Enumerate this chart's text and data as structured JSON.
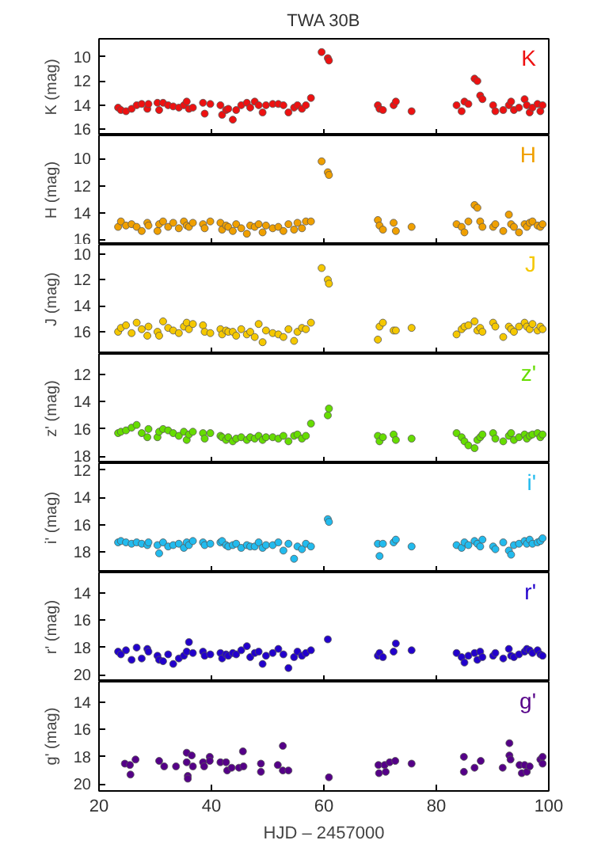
{
  "chart_data": [
    {
      "type": "scatter",
      "title": "TWA 30B",
      "ylabel": "K (mag)",
      "xlim": [
        20,
        100
      ],
      "xticks": [
        20,
        40,
        60,
        80,
        100
      ],
      "ylim": [
        16.5,
        8.5
      ],
      "yticks": [
        10,
        12,
        14,
        16
      ],
      "tick_labels": "y",
      "marker": "circle",
      "x": [
        23.4,
        23.9,
        24.8,
        25.8,
        26.7,
        27.6,
        28.6,
        28.8,
        30.4,
        30.7,
        31.4,
        32.3,
        33.2,
        34.2,
        35.1,
        35.6,
        36.0,
        36.7,
        38.5,
        38.8,
        39.8,
        41.6,
        41.9,
        42.6,
        43.0,
        43.8,
        44.4,
        45.3,
        46.3,
        46.9,
        47.7,
        48.4,
        49.1,
        49.7,
        50.9,
        51.9,
        52.8,
        53.7,
        54.7,
        55.3,
        56.1,
        56.8,
        57.7,
        59.6,
        60.7,
        60.9,
        69.6,
        69.9,
        70.5,
        72.4,
        72.8,
        75.6,
        83.6,
        84.5,
        85.0,
        85.7,
        86.8,
        87.3,
        87.8,
        88.2,
        90.1,
        90.5,
        91.9,
        92.9,
        93.3,
        93.8,
        94.7,
        95.7,
        96.1,
        96.6,
        97.1,
        98.0,
        98.5,
        98.9
      ],
      "series": [
        {
          "name": "K",
          "color": "#ee1111",
          "values": [
            14.2,
            14.4,
            14.5,
            14.3,
            14.0,
            13.9,
            14.3,
            13.9,
            13.8,
            14.4,
            13.8,
            14.0,
            14.1,
            14.2,
            14.0,
            13.7,
            14.3,
            14.2,
            13.8,
            14.7,
            13.9,
            14.0,
            14.8,
            14.4,
            14.3,
            15.2,
            14.4,
            14.0,
            13.8,
            14.2,
            13.7,
            14.0,
            14.6,
            14.0,
            13.9,
            13.9,
            14.0,
            14.6,
            14.2,
            14.0,
            14.3,
            14.0,
            13.4,
            9.6,
            10.1,
            10.3,
            14.0,
            14.3,
            14.4,
            14.0,
            13.7,
            14.5,
            14.0,
            14.5,
            13.7,
            13.9,
            11.8,
            12.0,
            13.2,
            13.5,
            14.0,
            14.5,
            14.4,
            14.0,
            13.7,
            14.4,
            14.2,
            13.5,
            14.0,
            14.6,
            14.2,
            13.9,
            14.5,
            14.0
          ]
        }
      ]
    },
    {
      "type": "scatter",
      "ylabel": "H (mag)",
      "xlim": [
        20,
        100
      ],
      "xticks": [
        20,
        40,
        60,
        80,
        100
      ],
      "ylim": [
        16.3,
        8.3
      ],
      "yticks": [
        10,
        12,
        14,
        16
      ],
      "tick_labels": "y",
      "marker": "circle",
      "x": [
        23.4,
        23.9,
        24.8,
        25.8,
        26.7,
        27.6,
        28.6,
        28.8,
        30.4,
        30.7,
        31.4,
        32.3,
        33.2,
        34.2,
        35.1,
        35.6,
        36.0,
        36.7,
        38.5,
        38.8,
        39.8,
        41.6,
        41.9,
        42.6,
        43.0,
        43.8,
        44.4,
        45.3,
        46.3,
        46.9,
        47.7,
        48.4,
        49.1,
        49.7,
        50.9,
        51.9,
        52.8,
        53.7,
        54.7,
        55.3,
        56.1,
        56.8,
        57.7,
        59.6,
        60.7,
        60.9,
        69.6,
        69.9,
        70.5,
        72.4,
        72.8,
        75.6,
        83.6,
        84.5,
        85.0,
        85.7,
        86.8,
        87.3,
        87.8,
        88.2,
        90.1,
        90.5,
        91.9,
        92.9,
        93.3,
        93.8,
        94.7,
        95.7,
        96.1,
        96.6,
        97.1,
        98.0,
        98.5,
        98.9
      ],
      "series": [
        {
          "name": "H",
          "color": "#f0a000",
          "values": [
            15.0,
            14.6,
            14.9,
            14.8,
            15.0,
            15.3,
            14.7,
            14.9,
            15.3,
            14.8,
            14.6,
            15.0,
            14.7,
            15.1,
            14.6,
            14.9,
            15.0,
            14.7,
            14.8,
            15.1,
            14.6,
            14.7,
            15.2,
            14.9,
            15.0,
            15.3,
            14.8,
            15.1,
            15.5,
            14.9,
            15.0,
            14.8,
            15.4,
            14.9,
            15.1,
            15.0,
            15.3,
            14.8,
            15.2,
            14.7,
            15.1,
            14.6,
            14.6,
            10.2,
            11.0,
            11.2,
            14.5,
            14.9,
            15.2,
            14.7,
            15.3,
            15.0,
            14.8,
            15.0,
            15.4,
            14.6,
            13.4,
            13.6,
            14.6,
            15.0,
            15.0,
            14.8,
            15.3,
            14.1,
            14.8,
            15.0,
            15.4,
            14.8,
            15.0,
            14.7,
            14.6,
            14.9,
            15.0,
            14.8
          ]
        }
      ]
    },
    {
      "type": "scatter",
      "ylabel": "J (mag)",
      "xlim": [
        20,
        100
      ],
      "xticks": [
        20,
        40,
        60,
        80,
        100
      ],
      "ylim": [
        17.7,
        9.3
      ],
      "yticks": [
        10,
        12,
        14,
        16
      ],
      "tick_labels": "y",
      "marker": "circle",
      "x": [
        23.4,
        23.9,
        24.8,
        25.8,
        26.7,
        27.6,
        28.6,
        28.8,
        30.4,
        30.7,
        31.4,
        32.3,
        33.2,
        34.2,
        35.1,
        35.6,
        36.0,
        36.7,
        38.5,
        38.8,
        39.8,
        41.6,
        41.9,
        42.6,
        43.0,
        43.8,
        44.4,
        45.3,
        46.3,
        46.9,
        47.7,
        48.4,
        49.1,
        49.7,
        50.9,
        51.9,
        52.8,
        53.7,
        54.7,
        55.3,
        56.1,
        56.8,
        57.7,
        59.6,
        60.7,
        60.9,
        69.6,
        69.9,
        70.5,
        72.4,
        72.8,
        75.6,
        83.6,
        84.5,
        85.0,
        85.7,
        86.8,
        87.3,
        87.8,
        88.2,
        90.1,
        90.5,
        91.9,
        92.9,
        93.3,
        93.8,
        94.7,
        95.7,
        96.1,
        96.6,
        97.1,
        98.0,
        98.5,
        98.9
      ],
      "series": [
        {
          "name": "J",
          "color": "#f5c800",
          "values": [
            16.0,
            15.7,
            15.5,
            16.1,
            15.3,
            15.8,
            16.3,
            15.6,
            16.0,
            16.3,
            15.2,
            15.7,
            15.9,
            16.1,
            15.6,
            15.3,
            15.8,
            15.4,
            15.5,
            16.0,
            16.1,
            15.8,
            16.2,
            15.9,
            16.0,
            16.0,
            16.3,
            15.8,
            16.2,
            16.0,
            16.4,
            15.4,
            16.8,
            15.9,
            16.1,
            16.2,
            16.4,
            15.8,
            16.7,
            16.0,
            15.7,
            15.8,
            15.3,
            11.1,
            12.0,
            12.3,
            16.6,
            15.6,
            15.3,
            15.9,
            15.9,
            15.7,
            16.2,
            15.8,
            15.6,
            15.5,
            15.2,
            15.9,
            15.7,
            16.0,
            15.3,
            15.6,
            16.4,
            15.6,
            15.8,
            16.0,
            15.6,
            15.3,
            15.6,
            15.8,
            15.4,
            15.9,
            15.6,
            15.8
          ]
        }
      ]
    },
    {
      "type": "scatter",
      "ylabel": "z' (mag)",
      "xlim": [
        20,
        100
      ],
      "xticks": [
        20,
        40,
        60,
        80,
        100
      ],
      "ylim": [
        18.5,
        10.5
      ],
      "yticks": [
        12,
        14,
        16,
        18
      ],
      "tick_labels": "y",
      "marker": "circle",
      "x": [
        23.4,
        23.9,
        24.8,
        25.8,
        26.7,
        27.6,
        28.6,
        28.8,
        30.4,
        30.7,
        31.4,
        32.3,
        33.2,
        34.2,
        35.1,
        35.6,
        36.0,
        36.7,
        38.5,
        38.8,
        39.8,
        41.6,
        41.9,
        42.6,
        43.0,
        43.8,
        44.4,
        45.3,
        46.3,
        46.9,
        47.7,
        48.4,
        49.1,
        49.7,
        50.9,
        51.9,
        52.8,
        53.7,
        54.7,
        55.3,
        56.1,
        56.8,
        57.7,
        59.6,
        60.7,
        60.9,
        69.6,
        69.9,
        70.5,
        72.4,
        72.8,
        75.6,
        83.6,
        84.5,
        85.0,
        85.7,
        86.8,
        87.3,
        87.8,
        88.2,
        90.1,
        90.5,
        91.9,
        92.9,
        93.3,
        93.8,
        94.7,
        95.7,
        96.1,
        96.6,
        97.1,
        98.0,
        98.5,
        98.9
      ],
      "series": [
        {
          "name": "z'",
          "color": "#66dd00",
          "values": [
            16.3,
            16.2,
            16.1,
            15.9,
            15.7,
            16.3,
            16.6,
            16.0,
            16.6,
            16.2,
            16.0,
            16.1,
            16.3,
            16.5,
            16.2,
            16.8,
            16.4,
            16.2,
            16.3,
            16.7,
            16.3,
            16.5,
            16.6,
            16.8,
            16.6,
            16.9,
            16.7,
            16.6,
            16.8,
            16.6,
            16.7,
            16.5,
            16.8,
            16.6,
            16.6,
            16.7,
            16.5,
            16.9,
            16.5,
            16.4,
            16.7,
            16.5,
            15.6,
            null,
            15.0,
            14.5,
            16.5,
            16.9,
            16.6,
            16.4,
            16.8,
            16.7,
            16.3,
            16.6,
            16.9,
            17.2,
            17.4,
            16.8,
            16.6,
            16.4,
            16.3,
            16.7,
            16.9,
            16.5,
            16.3,
            16.8,
            16.6,
            16.4,
            16.7,
            16.5,
            16.4,
            16.3,
            16.6,
            16.4
          ]
        }
      ]
    },
    {
      "type": "scatter",
      "ylabel": "i' (mag)",
      "xlim": [
        20,
        100
      ],
      "xticks": [
        20,
        40,
        60,
        80,
        100
      ],
      "ylim": [
        19.5,
        11.5
      ],
      "yticks": [
        12,
        14,
        16,
        18
      ],
      "tick_labels": "y",
      "marker": "circle",
      "x": [
        23.4,
        23.9,
        24.8,
        25.8,
        26.7,
        27.6,
        28.6,
        28.8,
        30.4,
        30.7,
        31.4,
        32.3,
        33.2,
        34.2,
        35.1,
        35.6,
        36.0,
        36.7,
        38.5,
        38.8,
        39.8,
        41.6,
        41.9,
        42.6,
        43.0,
        43.8,
        44.4,
        45.3,
        46.3,
        46.9,
        47.7,
        48.4,
        49.1,
        49.7,
        50.9,
        51.9,
        52.8,
        53.7,
        54.7,
        55.3,
        56.1,
        56.8,
        57.7,
        59.6,
        60.7,
        60.9,
        69.6,
        69.9,
        70.5,
        72.4,
        72.8,
        75.6,
        83.6,
        84.5,
        85.0,
        85.7,
        86.8,
        87.3,
        87.8,
        88.2,
        90.1,
        90.5,
        91.9,
        92.9,
        93.3,
        93.8,
        94.7,
        95.7,
        96.1,
        96.6,
        97.1,
        98.0,
        98.5,
        98.9
      ],
      "series": [
        {
          "name": "i'",
          "color": "#22bbee",
          "values": [
            17.3,
            17.2,
            17.3,
            17.4,
            17.3,
            17.4,
            17.5,
            17.3,
            17.5,
            18.1,
            17.3,
            17.6,
            17.5,
            17.4,
            17.7,
            17.3,
            17.5,
            17.2,
            17.3,
            17.5,
            17.4,
            17.3,
            17.2,
            17.5,
            17.6,
            17.5,
            17.4,
            17.7,
            17.5,
            17.6,
            17.6,
            17.3,
            17.7,
            17.5,
            17.5,
            17.3,
            17.9,
            17.4,
            18.5,
            17.6,
            17.8,
            17.4,
            17.6,
            null,
            15.6,
            15.8,
            17.4,
            18.3,
            17.4,
            17.3,
            17.1,
            17.6,
            17.5,
            17.7,
            17.3,
            17.5,
            17.2,
            17.4,
            17.6,
            17.1,
            17.6,
            17.8,
            17.3,
            17.9,
            18.2,
            17.5,
            17.4,
            17.2,
            17.4,
            17.1,
            17.4,
            17.3,
            17.2,
            17.0
          ]
        }
      ]
    },
    {
      "type": "scatter",
      "ylabel": "r' (mag)",
      "xlim": [
        20,
        100
      ],
      "xticks": [
        20,
        40,
        60,
        80,
        100
      ],
      "ylim": [
        20.5,
        12.5
      ],
      "yticks": [
        14,
        16,
        18,
        20
      ],
      "tick_labels": "y",
      "marker": "circle",
      "x": [
        23.4,
        23.9,
        24.8,
        25.8,
        26.7,
        27.6,
        28.6,
        28.8,
        30.4,
        30.7,
        31.4,
        32.3,
        33.2,
        34.2,
        35.1,
        35.6,
        36.0,
        36.7,
        38.5,
        38.8,
        39.8,
        41.6,
        41.9,
        42.6,
        43.0,
        43.8,
        44.4,
        45.3,
        46.3,
        46.9,
        47.7,
        48.4,
        49.1,
        49.7,
        50.9,
        51.9,
        52.8,
        53.7,
        54.7,
        55.3,
        56.1,
        56.8,
        57.7,
        59.6,
        60.7,
        60.9,
        69.6,
        69.9,
        70.5,
        72.4,
        72.8,
        75.6,
        83.6,
        84.5,
        85.0,
        85.7,
        86.8,
        87.3,
        87.8,
        88.2,
        90.1,
        90.5,
        91.9,
        92.9,
        93.3,
        93.8,
        94.7,
        95.7,
        96.1,
        96.6,
        97.1,
        98.0,
        98.5,
        98.9
      ],
      "series": [
        {
          "name": "r'",
          "color": "#2200cc",
          "values": [
            18.3,
            18.5,
            18.2,
            18.9,
            18.0,
            18.8,
            18.1,
            18.3,
            18.6,
            18.9,
            19.0,
            18.5,
            19.2,
            18.8,
            18.6,
            18.3,
            17.6,
            18.4,
            18.3,
            18.6,
            18.5,
            18.4,
            18.8,
            18.5,
            18.6,
            18.4,
            18.5,
            18.2,
            17.9,
            18.7,
            18.4,
            18.3,
            19.2,
            18.6,
            18.4,
            18.1,
            18.5,
            19.5,
            18.7,
            18.3,
            18.6,
            18.4,
            18.2,
            null,
            17.4,
            null,
            18.6,
            18.4,
            18.7,
            18.3,
            17.7,
            18.2,
            18.4,
            18.7,
            19.1,
            18.6,
            18.4,
            18.9,
            18.3,
            18.7,
            18.6,
            18.4,
            18.8,
            18.1,
            18.6,
            18.7,
            18.5,
            18.3,
            18.1,
            18.2,
            18.4,
            18.2,
            18.5,
            18.6
          ]
        }
      ]
    },
    {
      "type": "scatter",
      "xlabel": "HJD – 2457000",
      "ylabel": "g' (mag)",
      "xlim": [
        20,
        100
      ],
      "xticks": [
        20,
        40,
        60,
        80,
        100
      ],
      "ylim": [
        20.5,
        12.5
      ],
      "yticks": [
        14,
        16,
        18,
        20
      ],
      "marker": "circle",
      "x": [
        24.6,
        25.5,
        25.6,
        26.5,
        30.7,
        31.6,
        33.7,
        35.6,
        35.6,
        35.8,
        35.8,
        36.5,
        36.7,
        38.5,
        38.7,
        39.7,
        39.7,
        41.6,
        42.6,
        42.8,
        43.6,
        44.9,
        45.6,
        45.7,
        48.8,
        48.8,
        51.8,
        52.7,
        52.7,
        53.7,
        60.9,
        69.7,
        69.8,
        70.8,
        71.0,
        71.7,
        72.7,
        75.6,
        84.9,
        84.9,
        86.8,
        87.9,
        91.8,
        93.0,
        93.0,
        93.2,
        94.8,
        95.2,
        95.7,
        96.1,
        96.6,
        98.5,
        98.9,
        98.9
      ],
      "series": [
        {
          "name": "g'",
          "color": "#550088",
          "values": [
            18.5,
            18.6,
            19.3,
            18.2,
            18.3,
            18.7,
            18.7,
            17.7,
            18.4,
            19.4,
            19.6,
            17.9,
            18.7,
            18.4,
            18.7,
            18.0,
            18.3,
            18.4,
            18.4,
            19.0,
            18.8,
            18.8,
            17.6,
            18.7,
            18.5,
            19.1,
            18.6,
            17.2,
            19.0,
            19.0,
            19.5,
            18.6,
            19.2,
            18.6,
            19.1,
            18.4,
            18.3,
            18.5,
            18.0,
            19.1,
            18.8,
            18.3,
            18.8,
            17.0,
            17.9,
            18.2,
            18.6,
            19.2,
            18.6,
            19.1,
            18.7,
            18.2,
            18.0,
            18.5
          ]
        }
      ]
    }
  ]
}
